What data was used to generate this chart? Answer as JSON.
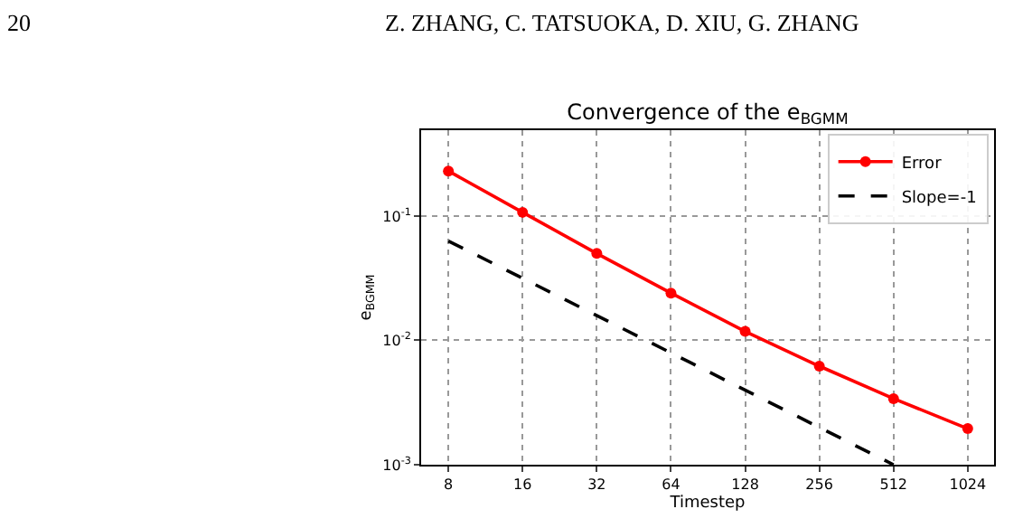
{
  "chart_data": {
    "type": "line",
    "title": "Convergence of the e$_{BGMM}$",
    "xlabel": "Timestep",
    "ylabel": "e$_{BGMM}$",
    "annotations": [
      "20",
      "Z. ZHANG, C. TATSUOKA, D. XIU, G. ZHANG"
    ],
    "x": [
      8,
      16,
      32,
      64,
      128,
      256,
      512,
      1024
    ],
    "series": [
      {
        "name": "Error",
        "color": "#ff0000",
        "marker": "circle",
        "line_style": "solid",
        "values": [
          0.23,
          0.107,
          0.05,
          0.024,
          0.0118,
          0.0062,
          0.0034,
          0.00195
        ]
      },
      {
        "name": "Slope=-1",
        "color": "#000000",
        "marker": "none",
        "line_style": "dashed",
        "x": [
          8,
          512
        ],
        "values": [
          0.063,
          0.001
        ]
      }
    ],
    "log": "xy",
    "xlim": [
      6.2,
      1310
    ],
    "ylim": [
      0.001,
      0.49
    ],
    "xticks": [
      8,
      16,
      32,
      64,
      128,
      256,
      512,
      1024
    ],
    "yticks": [
      {
        "value": 0.001,
        "label": "10$^{-3}$"
      },
      {
        "value": 0.01,
        "label": "10$^{-2}$"
      },
      {
        "value": 0.1,
        "label": "10$^{-1}$"
      }
    ],
    "grid": true,
    "legend": "top right"
  }
}
